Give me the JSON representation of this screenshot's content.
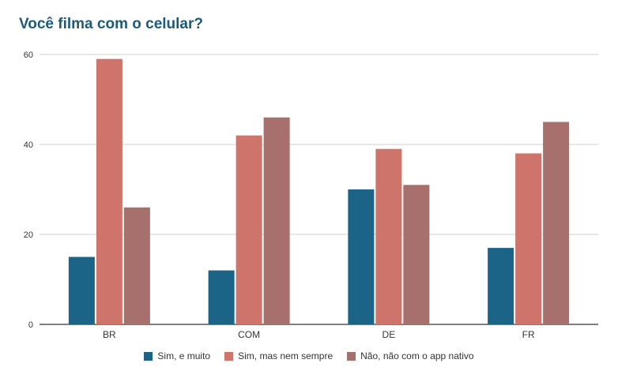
{
  "chart_data": {
    "type": "bar",
    "title": "Você filma com o celular?",
    "categories": [
      "BR",
      "COM",
      "DE",
      "FR"
    ],
    "series": [
      {
        "name": "Sim, e muito",
        "color": "#1b6488",
        "values": [
          15,
          12,
          30,
          17
        ]
      },
      {
        "name": "Sim, mas nem sempre",
        "color": "#cf746b",
        "values": [
          59,
          42,
          39,
          38
        ]
      },
      {
        "name": "Não, não com o app nativo",
        "color": "#a8706d",
        "values": [
          26,
          46,
          31,
          45
        ]
      }
    ],
    "yticks": [
      "0",
      "20",
      "40",
      "60"
    ],
    "ylim": [
      0,
      60
    ],
    "grid": true,
    "legend_position": "bottom"
  }
}
